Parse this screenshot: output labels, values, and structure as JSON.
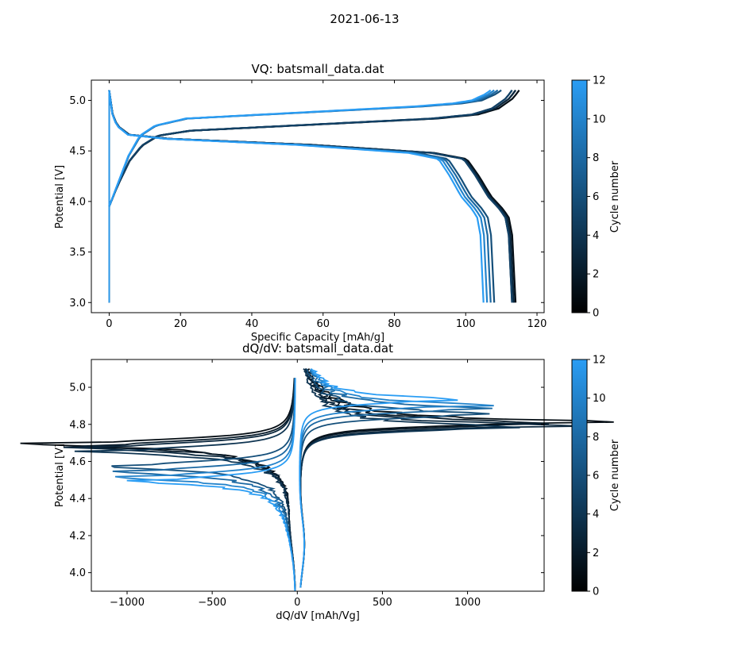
{
  "figure": {
    "suptitle": "2021-06-13"
  },
  "colormap": {
    "low": "#000000",
    "high": "#2a9df4"
  },
  "chart_data": [
    {
      "type": "line",
      "title": "VQ: batsmall_data.dat",
      "xlabel": "Specific Capacity [mAh/g]",
      "ylabel": "Potential [V]",
      "xlim": [
        -5,
        122
      ],
      "ylim": [
        2.9,
        5.2
      ],
      "xticks": [
        0,
        20,
        40,
        60,
        80,
        100,
        120
      ],
      "yticks": [
        3.0,
        3.5,
        4.0,
        4.5,
        5.0
      ],
      "xtick_labels": [
        "0",
        "20",
        "40",
        "60",
        "80",
        "100",
        "120"
      ],
      "ytick_labels": [
        "3.0",
        "3.5",
        "4.0",
        "4.5",
        "5.0"
      ],
      "colorbar": {
        "label": "Cycle number",
        "range": [
          0,
          12
        ],
        "ticks": [
          0,
          2,
          4,
          6,
          8,
          10,
          12
        ]
      },
      "series": [
        {
          "cycle": 1,
          "charge_capacity": 115,
          "discharge_capacity": 114
        },
        {
          "cycle": 2,
          "charge_capacity": 114,
          "discharge_capacity": 113.5
        },
        {
          "cycle": 3,
          "charge_capacity": 114,
          "discharge_capacity": 113.5
        },
        {
          "cycle": 4,
          "charge_capacity": 113,
          "discharge_capacity": 113
        },
        {
          "cycle": 5,
          "charge_capacity": 113,
          "discharge_capacity": 113
        },
        {
          "cycle": 6,
          "charge_capacity": 110,
          "discharge_capacity": 108
        },
        {
          "cycle": 8,
          "charge_capacity": 109,
          "discharge_capacity": 107
        },
        {
          "cycle": 10,
          "charge_capacity": 108,
          "discharge_capacity": 106
        },
        {
          "cycle": 12,
          "charge_capacity": 107,
          "discharge_capacity": 105
        }
      ]
    },
    {
      "type": "line",
      "title": "dQ/dV: batsmall_data.dat",
      "xlabel": "dQ/dV [mAh/Vg]",
      "ylabel": "Potential [V]",
      "xlim": [
        -1210,
        1450
      ],
      "ylim": [
        3.9,
        5.15
      ],
      "xticks": [
        -1000,
        -500,
        0,
        500,
        1000
      ],
      "yticks": [
        4.0,
        4.2,
        4.4,
        4.6,
        4.8,
        5.0
      ],
      "xtick_labels": [
        "−1000",
        "−500",
        "0",
        "500",
        "1000"
      ],
      "ytick_labels": [
        "4.0",
        "4.2",
        "4.4",
        "4.6",
        "4.8",
        "5.0"
      ],
      "colorbar": {
        "label": "Cycle number",
        "range": [
          0,
          12
        ],
        "ticks": [
          0,
          2,
          4,
          6,
          8,
          10,
          12
        ]
      },
      "series": [
        {
          "cycle": 1,
          "charge_peak": [
            1330,
            4.81
          ],
          "discharge_peak": [
            -1100,
            4.7
          ]
        },
        {
          "cycle": 2,
          "charge_peak": [
            1200,
            4.8
          ],
          "discharge_peak": [
            -1000,
            4.69
          ]
        },
        {
          "cycle": 3,
          "charge_peak": [
            1150,
            4.79
          ],
          "discharge_peak": [
            -980,
            4.68
          ]
        },
        {
          "cycle": 4,
          "charge_peak": [
            1000,
            4.78
          ],
          "discharge_peak": [
            -900,
            4.66
          ]
        },
        {
          "cycle": 6,
          "charge_peak": [
            900,
            4.85
          ],
          "discharge_peak": [
            -850,
            4.58
          ]
        },
        {
          "cycle": 8,
          "charge_peak": [
            880,
            4.88
          ],
          "discharge_peak": [
            -800,
            4.55
          ]
        },
        {
          "cycle": 10,
          "charge_peak": [
            800,
            4.9
          ],
          "discharge_peak": [
            -750,
            4.52
          ]
        },
        {
          "cycle": 12,
          "charge_peak": [
            700,
            4.93
          ],
          "discharge_peak": [
            -700,
            4.5
          ]
        }
      ]
    }
  ]
}
